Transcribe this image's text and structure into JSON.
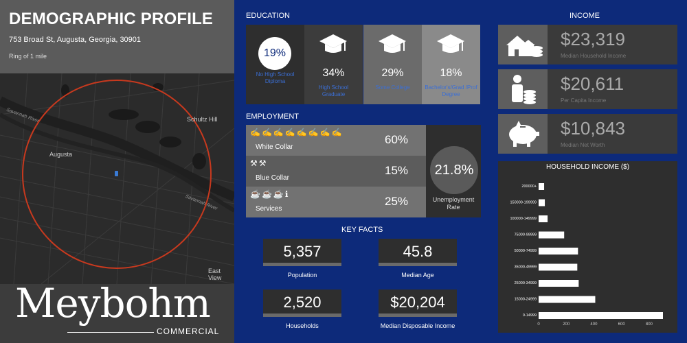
{
  "header": {
    "title": "DEMOGRAPHIC PROFILE",
    "address": "753 Broad St, Augusta, Georgia, 30901",
    "ring": "Ring of 1 mile"
  },
  "map": {
    "labels": {
      "augusta": "Augusta",
      "schultz_hill": "Schultz Hill",
      "east_view": "East View",
      "savannah_river_1": "Savannah River",
      "savannah_river_2": "Savannah River"
    },
    "ring_color": "#c8391e"
  },
  "logo": {
    "main": "Meybohm",
    "sub": "COMMERCIAL"
  },
  "education": {
    "title": "EDUCATION",
    "items": [
      {
        "pct": "19%",
        "label": "No High School Diploma",
        "icon": "circle",
        "bg": "#2e2e2e"
      },
      {
        "pct": "34%",
        "label": "High School Graduate",
        "icon": "graduation-cap-icon",
        "bg": "#3c3c3c"
      },
      {
        "pct": "29%",
        "label": "Some College",
        "icon": "graduation-cap-icon",
        "bg": "#6b6b6b"
      },
      {
        "pct": "18%",
        "label": "Bachelor's/Grad /Prof Degree",
        "icon": "graduation-cap-icon",
        "bg": "#8a8a8a"
      }
    ]
  },
  "employment": {
    "title": "EMPLOYMENT",
    "rows": [
      {
        "label": "White Collar",
        "pct": "60%",
        "icons": "✍✍✍✍✍✍✍✍",
        "bg": "#727272"
      },
      {
        "label": "Blue Collar",
        "pct": "15%",
        "icons": "⚒⚒",
        "bg": "#5c5c5c"
      },
      {
        "label": "Services",
        "pct": "25%",
        "icons": "☕☕☕ℹ",
        "bg": "#727272"
      }
    ],
    "unemployment_rate": "21.8%",
    "unemployment_label": "Unemployment Rate"
  },
  "key_facts": {
    "title": "KEY FACTS",
    "items": [
      {
        "value": "5,357",
        "label": "Population"
      },
      {
        "value": "45.8",
        "label": "Median Age"
      },
      {
        "value": "2,520",
        "label": "Households"
      },
      {
        "value": "$20,204",
        "label": "Median Disposable Income"
      }
    ]
  },
  "income": {
    "title": "INCOME",
    "items": [
      {
        "value": "$23,319",
        "label": "Median Household Income",
        "icon": "house-coins-icon"
      },
      {
        "value": "$20,611",
        "label": "Per Capita Income",
        "icon": "person-coins-icon"
      },
      {
        "value": "$10,843",
        "label": "Median Net Worth",
        "icon": "piggy-bank-icon"
      }
    ]
  },
  "chart_data": {
    "type": "bar",
    "orientation": "horizontal",
    "title": "HOUSEHOLD INCOME ($)",
    "categories": [
      "200000+",
      "150000-199999",
      "100000-149999",
      "75000-99999",
      "50000-74999",
      "35000-49999",
      "25000-34999",
      "15000-24999",
      "0-14999"
    ],
    "values": [
      40,
      45,
      65,
      185,
      285,
      280,
      290,
      410,
      900
    ],
    "xlim": [
      0,
      900
    ],
    "xticks": [
      "0",
      "200",
      "400",
      "600",
      "800"
    ],
    "grid": false,
    "bar_color": "#ffffff"
  }
}
